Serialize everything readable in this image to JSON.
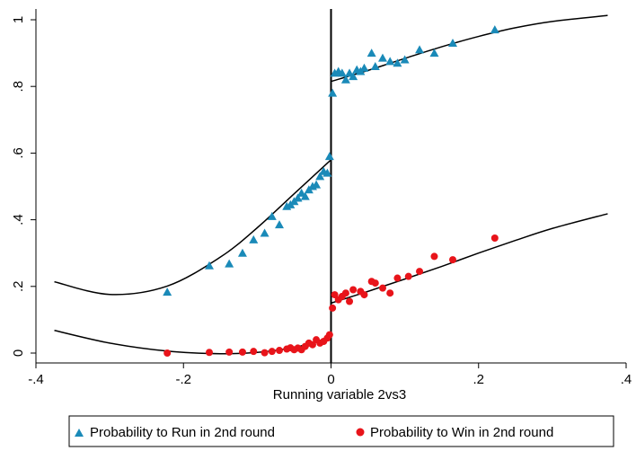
{
  "chart_data": {
    "type": "scatter",
    "title": "",
    "xlabel": "Running variable 2vs3",
    "ylabel": "",
    "xlim": [
      -0.4,
      0.4
    ],
    "ylim": [
      0,
      1
    ],
    "xticks": [
      -0.4,
      -0.2,
      0,
      0.2,
      0.4
    ],
    "xtick_labels": [
      "-.4",
      "-.2",
      "0",
      ".2",
      ".4"
    ],
    "yticks": [
      0,
      0.2,
      0.4,
      0.6,
      0.8,
      1
    ],
    "ytick_labels": [
      "0",
      ".2",
      ".4",
      ".6",
      ".8",
      "1"
    ],
    "cutoff": 0,
    "grid": false,
    "legend_position": "bottom",
    "series": [
      {
        "name": "Probability to Run in 2nd round",
        "marker": "triangle",
        "color": "#1a8ab8",
        "points": [
          [
            -0.222,
            0.183
          ],
          [
            -0.165,
            0.262
          ],
          [
            -0.138,
            0.268
          ],
          [
            -0.12,
            0.3
          ],
          [
            -0.105,
            0.34
          ],
          [
            -0.09,
            0.36
          ],
          [
            -0.08,
            0.41
          ],
          [
            -0.07,
            0.385
          ],
          [
            -0.06,
            0.44
          ],
          [
            -0.055,
            0.445
          ],
          [
            -0.05,
            0.455
          ],
          [
            -0.045,
            0.465
          ],
          [
            -0.04,
            0.48
          ],
          [
            -0.035,
            0.47
          ],
          [
            -0.03,
            0.49
          ],
          [
            -0.025,
            0.5
          ],
          [
            -0.02,
            0.505
          ],
          [
            -0.015,
            0.53
          ],
          [
            -0.01,
            0.545
          ],
          [
            -0.005,
            0.54
          ],
          [
            -0.002,
            0.59
          ],
          [
            0.002,
            0.78
          ],
          [
            0.005,
            0.84
          ],
          [
            0.01,
            0.845
          ],
          [
            0.015,
            0.84
          ],
          [
            0.02,
            0.82
          ],
          [
            0.025,
            0.84
          ],
          [
            0.03,
            0.83
          ],
          [
            0.035,
            0.85
          ],
          [
            0.04,
            0.845
          ],
          [
            0.045,
            0.855
          ],
          [
            0.055,
            0.9
          ],
          [
            0.06,
            0.86
          ],
          [
            0.07,
            0.885
          ],
          [
            0.08,
            0.875
          ],
          [
            0.09,
            0.87
          ],
          [
            0.1,
            0.88
          ],
          [
            0.12,
            0.91
          ],
          [
            0.14,
            0.9
          ],
          [
            0.165,
            0.93
          ],
          [
            0.222,
            0.97
          ]
        ],
        "fit_left": [
          -0.375,
          0.214,
          -0.3,
          0.176,
          -0.222,
          0.201,
          -0.15,
          0.288,
          -0.1,
          0.376,
          -0.05,
          0.478,
          0.0,
          0.58
        ],
        "fit_right": [
          0.0,
          0.815,
          0.05,
          0.848,
          0.1,
          0.884,
          0.15,
          0.919,
          0.2,
          0.95,
          0.25,
          0.976,
          0.3,
          0.995,
          0.375,
          1.013
        ]
      },
      {
        "name": "Probability to Win in 2nd round",
        "marker": "circle",
        "color": "#e8141a",
        "points": [
          [
            -0.222,
            0.0
          ],
          [
            -0.165,
            0.002
          ],
          [
            -0.138,
            0.003
          ],
          [
            -0.12,
            0.003
          ],
          [
            -0.105,
            0.005
          ],
          [
            -0.09,
            0.001
          ],
          [
            -0.08,
            0.005
          ],
          [
            -0.07,
            0.008
          ],
          [
            -0.06,
            0.012
          ],
          [
            -0.055,
            0.016
          ],
          [
            -0.05,
            0.01
          ],
          [
            -0.045,
            0.015
          ],
          [
            -0.04,
            0.01
          ],
          [
            -0.035,
            0.02
          ],
          [
            -0.03,
            0.03
          ],
          [
            -0.025,
            0.025
          ],
          [
            -0.02,
            0.04
          ],
          [
            -0.015,
            0.03
          ],
          [
            -0.01,
            0.035
          ],
          [
            -0.005,
            0.045
          ],
          [
            -0.002,
            0.055
          ],
          [
            0.002,
            0.135
          ],
          [
            0.005,
            0.175
          ],
          [
            0.01,
            0.16
          ],
          [
            0.015,
            0.17
          ],
          [
            0.02,
            0.18
          ],
          [
            0.025,
            0.155
          ],
          [
            0.03,
            0.19
          ],
          [
            0.04,
            0.185
          ],
          [
            0.045,
            0.175
          ],
          [
            0.055,
            0.215
          ],
          [
            0.06,
            0.21
          ],
          [
            0.07,
            0.195
          ],
          [
            0.08,
            0.18
          ],
          [
            0.09,
            0.225
          ],
          [
            0.105,
            0.23
          ],
          [
            0.12,
            0.245
          ],
          [
            0.14,
            0.29
          ],
          [
            0.165,
            0.28
          ],
          [
            0.222,
            0.345
          ]
        ],
        "fit_left": [
          -0.375,
          0.068,
          -0.3,
          0.03,
          -0.222,
          0.006,
          -0.15,
          -0.002,
          -0.1,
          0.002,
          -0.05,
          0.017,
          0.0,
          0.045
        ],
        "fit_right": [
          0.0,
          0.15,
          0.05,
          0.185,
          0.1,
          0.222,
          0.15,
          0.26,
          0.2,
          0.3,
          0.25,
          0.338,
          0.3,
          0.374,
          0.375,
          0.418
        ]
      }
    ]
  }
}
